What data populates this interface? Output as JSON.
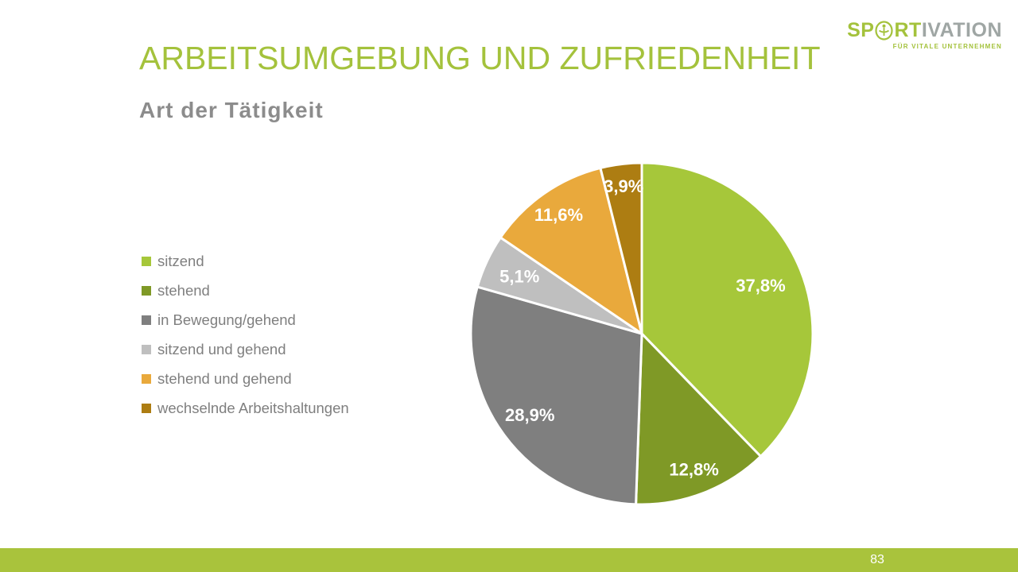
{
  "slide": {
    "title": "ARBEITSUMGEBUNG UND ZUFRIEDENHEIT",
    "subtitle": "Art der Tätigkeit",
    "page_number": "83"
  },
  "logo": {
    "text_primary_1": "SP",
    "text_primary_2": "RT",
    "text_secondary": "IVATION",
    "tagline": "FÜR VITALE UNTERNEHMEN",
    "brand_green": "#A4C23C",
    "brand_gray": "#9FA6A4"
  },
  "colors": {
    "title_green": "#A4C23C",
    "subtitle_gray": "#8C8C8C",
    "footer_green": "#A9C33C",
    "legend_text_gray": "#7F7F7F",
    "pie_border_white": "#FFFFFF"
  },
  "chart_data": {
    "type": "pie",
    "title": "Art der Tätigkeit",
    "legend_position": "left",
    "start_angle_deg": 0,
    "direction": "clockwise",
    "slices": [
      {
        "label": "sitzend",
        "value": 37.8,
        "display": "37,8%",
        "color": "#A6C73A"
      },
      {
        "label": "stehend",
        "value": 12.8,
        "display": "12,8%",
        "color": "#7F9926"
      },
      {
        "label": "in Bewegung/gehend",
        "value": 28.9,
        "display": "28,9%",
        "color": "#7F7F7F"
      },
      {
        "label": "sitzend und gehend",
        "value": 5.1,
        "display": "5,1%",
        "color": "#BFBFBF"
      },
      {
        "label": "stehend und gehend",
        "value": 11.6,
        "display": "11,6%",
        "color": "#E9A93C"
      },
      {
        "label": "wechselnde Arbeitshaltungen",
        "value": 3.9,
        "display": "3,9%",
        "color": "#AD7D12"
      }
    ]
  }
}
